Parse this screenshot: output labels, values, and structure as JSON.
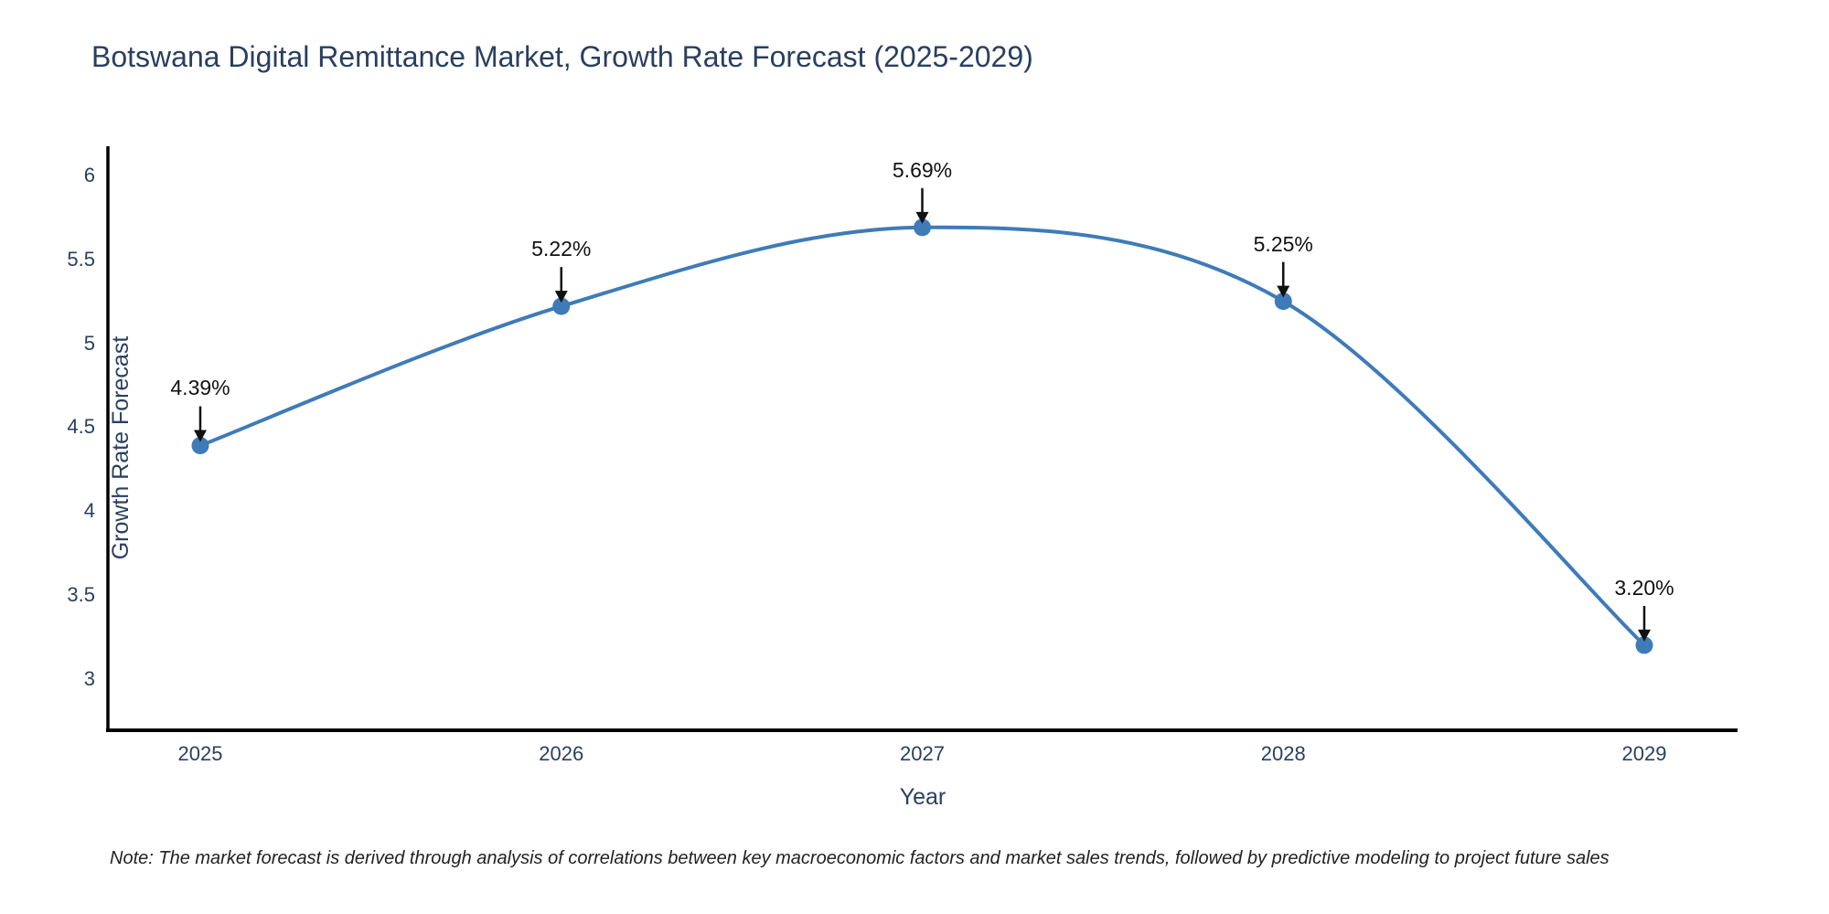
{
  "note": "Note: The market forecast is derived through analysis of correlations between key macroeconomic factors and market sales trends, followed by predictive modeling to project future sales",
  "chart_data": {
    "type": "line",
    "title": "Botswana Digital Remittance Market, Growth Rate Forecast (2025-2029)",
    "xlabel": "Year",
    "ylabel": "Growth Rate Forecast",
    "x": [
      2025,
      2026,
      2027,
      2028,
      2029
    ],
    "values": [
      4.39,
      5.22,
      5.69,
      5.25,
      3.2
    ],
    "point_labels": [
      "4.39%",
      "5.22%",
      "5.69%",
      "5.25%",
      "3.20%"
    ],
    "yticks": [
      3,
      3.5,
      4,
      4.5,
      5,
      5.5,
      6
    ],
    "ylim": [
      2.693,
      6.174
    ],
    "line_shape": "spline",
    "grid": false,
    "legend": "none",
    "colors": {
      "line": "#3f7bb8",
      "marker": "#3f7bb8",
      "axis": "#000000",
      "tick_text": "#2a3f5f",
      "title_text": "#2a3f5f",
      "annotation": "#111111",
      "background": "#ffffff"
    }
  }
}
